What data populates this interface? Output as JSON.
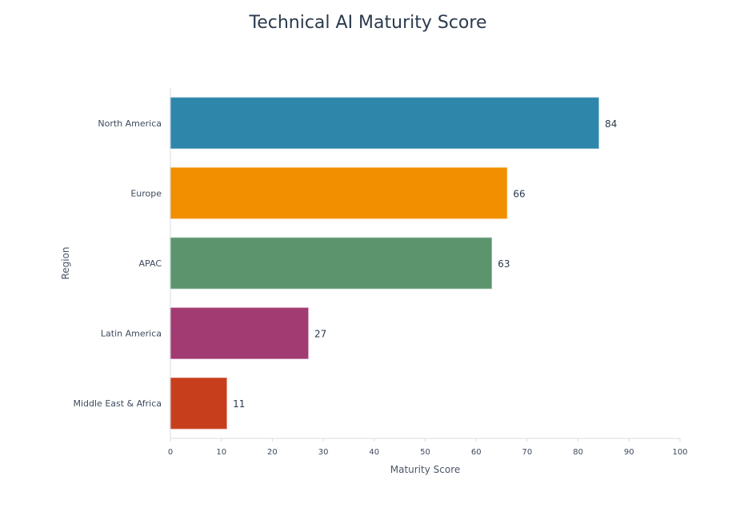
{
  "chart_data": {
    "type": "bar",
    "orientation": "horizontal",
    "title": "Technical AI Maturity Score",
    "xlabel": "Maturity Score",
    "ylabel": "Region",
    "xlim": [
      0,
      100
    ],
    "xticks": [
      0,
      10,
      20,
      30,
      40,
      50,
      60,
      70,
      80,
      90,
      100
    ],
    "categories": [
      "North America",
      "Europe",
      "APAC",
      "Latin America",
      "Middle East & Africa"
    ],
    "values": [
      84,
      66,
      63,
      27,
      11
    ],
    "colors": [
      "#2e86ab",
      "#f18f01",
      "#5c946e",
      "#a23b72",
      "#c73e1d"
    ],
    "data_labels": true,
    "grid": false
  }
}
